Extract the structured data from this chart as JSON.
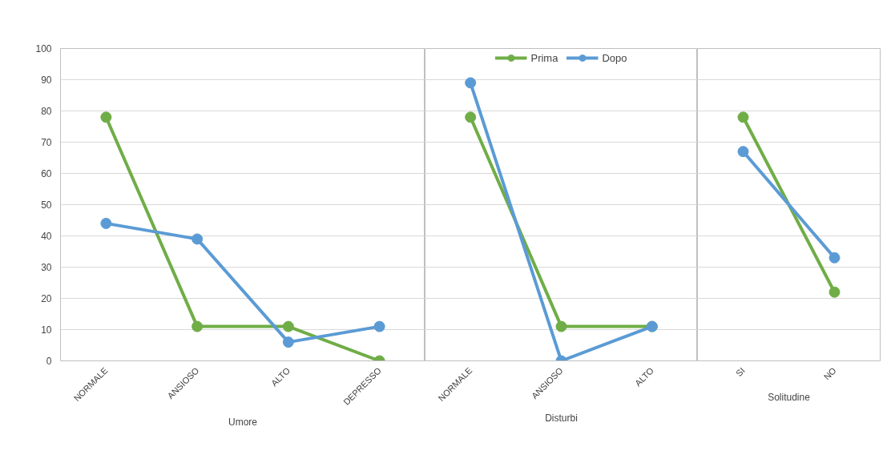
{
  "chart_data": [
    {
      "type": "line",
      "xlabel": "Umore",
      "categories": [
        "NORMALE",
        "ANSIOSO",
        "ALTO",
        "DEPRESSO"
      ],
      "ylim": [
        0,
        100
      ],
      "yticks": [
        0,
        10,
        20,
        30,
        40,
        50,
        60,
        70,
        80,
        90,
        100
      ],
      "grid": "y",
      "marker": "circle",
      "series": [
        {
          "color": "#70ad47",
          "values": [
            78,
            11,
            11,
            0
          ]
        },
        {
          "color": "#5b9bd5",
          "values": [
            44,
            39,
            6,
            11
          ]
        }
      ]
    },
    {
      "type": "line",
      "xlabel": "Disturbi",
      "categories": [
        "NORMALE",
        "ANSIOSO",
        "ALTO"
      ],
      "ylim": [
        0,
        100
      ],
      "yticks": [
        0,
        10,
        20,
        30,
        40,
        50,
        60,
        70,
        80,
        90,
        100
      ],
      "grid": "y",
      "marker": "circle",
      "tick_labels": "x",
      "legend": "top",
      "series": [
        {
          "name": "Prima",
          "color": "#70ad47",
          "values": [
            78,
            11,
            11
          ]
        },
        {
          "name": "Dopo",
          "color": "#5b9bd5",
          "values": [
            89,
            0,
            11
          ]
        }
      ]
    },
    {
      "type": "line",
      "xlabel": "Solitudine",
      "categories": [
        "SI",
        "NO"
      ],
      "ylim": [
        0,
        100
      ],
      "yticks": [
        0,
        10,
        20,
        30,
        40,
        50,
        60,
        70,
        80,
        90,
        100
      ],
      "grid": "y",
      "marker": "circle",
      "tick_labels": "x",
      "series": [
        {
          "color": "#70ad47",
          "values": [
            78,
            22
          ]
        },
        {
          "color": "#5b9bd5",
          "values": [
            67,
            33
          ]
        }
      ]
    }
  ]
}
